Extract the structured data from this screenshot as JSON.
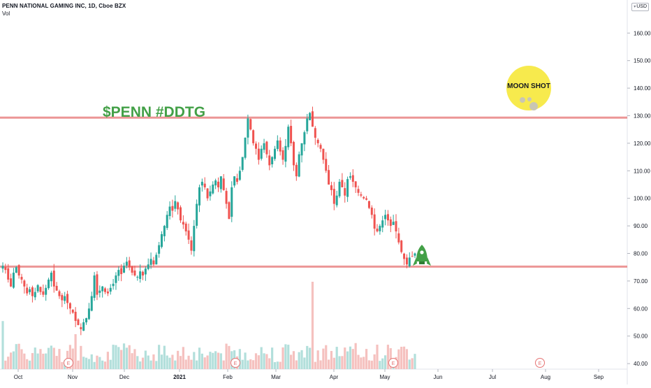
{
  "legend": {
    "title": "PENN NATIONAL GAMING INC, 1D, Cboe BZX",
    "volume_label": "Vol"
  },
  "currency": "USD",
  "colors": {
    "up": "#26a69a",
    "down": "#ef5350",
    "vol_up": "#b2dfdb",
    "vol_down": "#f5c1bf",
    "hline": "#e57373",
    "annotation_text": "#43a047",
    "moon": "#f7ea4d",
    "moon_crater": "#c9c6b3",
    "rocket": "#43a047",
    "earnings": "#e57373",
    "grid_text": "#131722"
  },
  "annotations": {
    "ticker_text": "$PENN #DDTG",
    "moon_text": "MOON SHOT",
    "rocket_icon": "rocket-icon",
    "moon_icon": "moon-icon"
  },
  "chart_data": {
    "type": "candlestick",
    "y_axis": {
      "ticks": [
        40,
        50,
        60,
        70,
        80,
        90,
        100,
        110,
        120,
        130,
        140,
        150,
        160
      ],
      "tick_labels": [
        "40.00",
        "50.00",
        "60.00",
        "70.00",
        "80.00",
        "90.00",
        "100.00",
        "110.00",
        "120.00",
        "130.00",
        "140.00",
        "150.00",
        "160.00"
      ],
      "range": [
        38,
        172
      ]
    },
    "x_axis": {
      "ticks": [
        "Oct",
        "Nov",
        "Dec",
        "2021",
        "Feb",
        "Mar",
        "Apr",
        "May",
        "Jun",
        "Jul",
        "Aug",
        "Sep"
      ]
    },
    "horizontal_lines": [
      129.3,
      75.2
    ],
    "earnings_markers": [
      "E",
      "E",
      "E",
      "E"
    ],
    "candles_close": [
      75.5,
      74.0,
      70.5,
      68.0,
      73.0,
      75.0,
      72.0,
      70.5,
      68.0,
      65.5,
      67.0,
      64.5,
      66.0,
      68.5,
      66.0,
      65.0,
      67.5,
      70.5,
      73.0,
      68.0,
      66.5,
      64.5,
      63.0,
      64.5,
      62.0,
      60.0,
      58.5,
      55.5,
      54.0,
      52.5,
      55.0,
      56.5,
      60.0,
      64.5,
      72.0,
      65.0,
      66.5,
      68.0,
      66.0,
      65.5,
      67.5,
      69.0,
      72.0,
      74.0,
      72.5,
      75.5,
      77.0,
      75.0,
      73.0,
      72.0,
      71.5,
      73.5,
      72.0,
      74.5,
      76.0,
      78.0,
      76.0,
      79.5,
      83.0,
      87.0,
      90.0,
      94.0,
      97.0,
      95.5,
      99.0,
      96.0,
      92.0,
      90.5,
      88.0,
      85.0,
      81.0,
      90.0,
      98.0,
      104.0,
      106.0,
      104.0,
      100.0,
      102.5,
      105.0,
      106.5,
      104.0,
      108.0,
      103.0,
      98.0,
      92.5,
      104.0,
      108.0,
      106.0,
      110.0,
      115.0,
      122.0,
      129.0,
      125.0,
      120.0,
      118.0,
      114.0,
      118.0,
      120.0,
      116.0,
      112.0,
      115.0,
      118.0,
      121.0,
      117.0,
      114.0,
      119.0,
      126.0,
      120.0,
      112.0,
      108.0,
      116.0,
      120.0,
      124.0,
      129.0,
      131.0,
      126.0,
      122.0,
      120.0,
      118.0,
      114.0,
      110.0,
      105.0,
      103.0,
      98.0,
      101.0,
      106.0,
      104.0,
      101.0,
      107.0,
      108.0,
      106.0,
      104.0,
      102.0,
      101.0,
      100.0,
      99.5,
      96.5,
      94.0,
      89.0,
      88.0,
      90.0,
      92.0,
      94.0,
      92.0,
      90.0,
      91.5,
      88.0,
      84.0,
      80.5,
      78.0,
      76.0,
      78.5,
      79.0,
      80.0
    ],
    "volume_scale_max": 100
  }
}
